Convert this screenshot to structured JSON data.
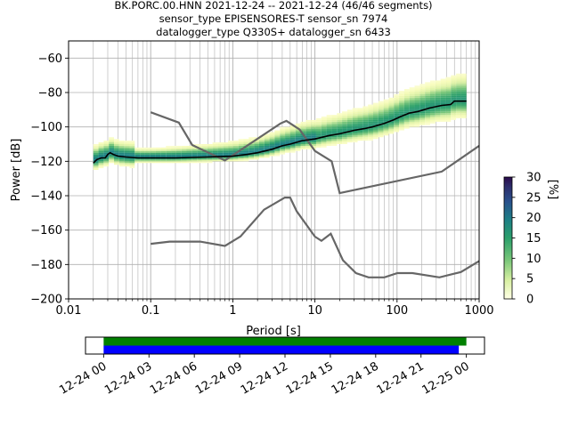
{
  "chart_data": {
    "type": "heatmap",
    "title_lines": [
      "BK.PORC.00.HNN   2021-12-24 -- 2021-12-24  (46/46 segments)",
      "sensor_type EPISENSORES-T sensor_sn 7974",
      "datalogger_type Q330S+ datalogger_sn 6433"
    ],
    "xlabel": "Period [s]",
    "ylabel": "Power [dB]",
    "x_scale": "log",
    "xlim": [
      0.01,
      1000
    ],
    "ylim": [
      -200,
      -50
    ],
    "x_ticks": [
      0.01,
      0.1,
      1,
      10,
      100,
      1000
    ],
    "x_tick_labels": [
      "0.01",
      "0.1",
      "1",
      "10",
      "100",
      "1000"
    ],
    "y_ticks": [
      -200,
      -180,
      -160,
      -140,
      -120,
      -100,
      -80,
      -60
    ],
    "y_tick_labels": [
      "−200",
      "−180",
      "−160",
      "−140",
      "−120",
      "−100",
      "−80",
      "−60"
    ],
    "grid": true,
    "colorbar": {
      "label": "[%]",
      "range": [
        0,
        30
      ],
      "ticks": [
        0,
        5,
        10,
        15,
        20,
        25,
        30
      ],
      "tick_labels": [
        "0",
        "5",
        "10",
        "15",
        "20",
        "25",
        "30"
      ]
    },
    "mode_curve": [
      [
        0.02,
        -121
      ],
      [
        0.022,
        -119
      ],
      [
        0.025,
        -118
      ],
      [
        0.028,
        -118
      ],
      [
        0.03,
        -116
      ],
      [
        0.032,
        -115
      ],
      [
        0.035,
        -116
      ],
      [
        0.04,
        -117
      ],
      [
        0.05,
        -117.5
      ],
      [
        0.07,
        -118
      ],
      [
        0.1,
        -118
      ],
      [
        0.2,
        -118
      ],
      [
        0.5,
        -117.5
      ],
      [
        1,
        -117
      ],
      [
        1.5,
        -116
      ],
      [
        2,
        -115
      ],
      [
        3,
        -113
      ],
      [
        4,
        -111
      ],
      [
        5,
        -110
      ],
      [
        7,
        -108
      ],
      [
        10,
        -107
      ],
      [
        15,
        -105
      ],
      [
        20,
        -104
      ],
      [
        30,
        -102
      ],
      [
        40,
        -101
      ],
      [
        50,
        -100
      ],
      [
        70,
        -98
      ],
      [
        90,
        -96
      ],
      [
        110,
        -94
      ],
      [
        140,
        -92
      ],
      [
        180,
        -91
      ],
      [
        250,
        -89
      ],
      [
        350,
        -87.5
      ],
      [
        450,
        -87
      ],
      [
        500,
        -85
      ],
      [
        700,
        -85
      ]
    ],
    "noise_model_high": [
      [
        0.1,
        -91.5
      ],
      [
        0.22,
        -97.5
      ],
      [
        0.32,
        -110.5
      ],
      [
        0.8,
        -119.5
      ],
      [
        3.8,
        -98
      ],
      [
        4.5,
        -96.5
      ],
      [
        6.5,
        -101.5
      ],
      [
        10,
        -114
      ],
      [
        16,
        -120
      ],
      [
        20,
        -138.5
      ],
      [
        350,
        -126
      ],
      [
        1000,
        -111
      ]
    ],
    "noise_model_low": [
      [
        0.1,
        -168
      ],
      [
        0.17,
        -166.7
      ],
      [
        0.4,
        -166.7
      ],
      [
        0.8,
        -169.2
      ],
      [
        1.24,
        -163.7
      ],
      [
        2.4,
        -148.1
      ],
      [
        4.3,
        -141.1
      ],
      [
        5,
        -141.1
      ],
      [
        6,
        -149
      ],
      [
        10,
        -163.8
      ],
      [
        12,
        -166.2
      ],
      [
        15.6,
        -162.1
      ],
      [
        21.9,
        -177.5
      ],
      [
        31.6,
        -185
      ],
      [
        45,
        -187.5
      ],
      [
        70,
        -187.5
      ],
      [
        101,
        -185
      ],
      [
        154,
        -185
      ],
      [
        328,
        -187.5
      ],
      [
        600,
        -184.4
      ],
      [
        1000,
        -178
      ]
    ],
    "timeline": {
      "tick_labels": [
        "12-24 00",
        "12-24 03",
        "12-24 06",
        "12-24 09",
        "12-24 12",
        "12-24 15",
        "12-24 18",
        "12-24 21",
        "12-25 00"
      ],
      "tick_hours": [
        0,
        3,
        6,
        9,
        12,
        15,
        18,
        21,
        24
      ],
      "range_hours": [
        -1.2,
        25.2
      ],
      "bars": [
        {
          "color": "#008000",
          "start_hour": 0.0,
          "end_hour": 24.0
        },
        {
          "color": "#0000ff",
          "start_hour": 0.0,
          "end_hour": 23.5
        }
      ]
    },
    "colors": {
      "mode": "#000000",
      "noise_model": "#666666",
      "grid": "#b0b0b0"
    }
  }
}
